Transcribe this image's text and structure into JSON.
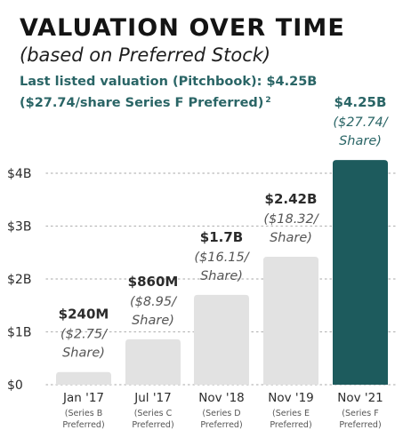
{
  "title": "VALUATION OVER TIME",
  "subtitle": "(based on Preferred Stock)",
  "note": {
    "text": "Last listed valuation (Pitchbook): $4.25B ($27.74/share Series F Preferred)",
    "footnote": "2"
  },
  "colors": {
    "bar": "#e2e2e2",
    "highlight": "#1d5b5d",
    "accent_text": "#2a6566",
    "label": "#2b2b2b",
    "subtle": "#555555",
    "grid": "#b8b8b8"
  },
  "chart_data": {
    "type": "bar",
    "categories": [
      "Jan '17",
      "Jul '17",
      "Nov '18",
      "Nov '19",
      "Nov '21"
    ],
    "series_labels": [
      [
        "(Series B",
        "Preferred)"
      ],
      [
        "(Series C",
        "Preferred)"
      ],
      [
        "(Series D",
        "Preferred)"
      ],
      [
        "(Series E",
        "Preferred)"
      ],
      [
        "(Series F",
        "Preferred)"
      ]
    ],
    "values": [
      0.24,
      0.86,
      1.7,
      2.42,
      4.25
    ],
    "value_labels": [
      "$240M",
      "$860M",
      "$1.7B",
      "$2.42B",
      "$4.25B"
    ],
    "share_labels": [
      [
        "($2.75/",
        "Share)"
      ],
      [
        "($8.95/",
        "Share)"
      ],
      [
        "($16.15/",
        "Share)"
      ],
      [
        "($18.32/",
        "Share)"
      ],
      [
        "($27.74/",
        "Share)"
      ]
    ],
    "highlight_index": 4,
    "yticks": [
      0,
      1,
      2,
      3,
      4
    ],
    "ytick_labels": [
      "$0",
      "$1B",
      "$2B",
      "$3B",
      "$4B"
    ],
    "ylim": [
      0,
      4.25
    ],
    "grid": true
  }
}
